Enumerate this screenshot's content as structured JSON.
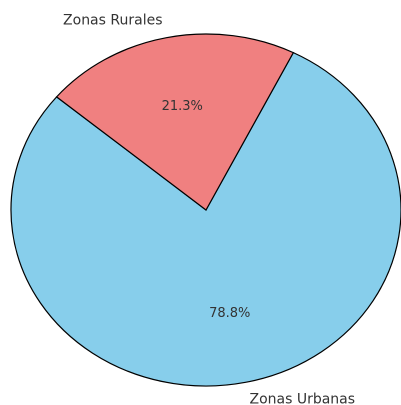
{
  "chart_data": {
    "type": "pie",
    "categories": [
      "Zonas Urbanas",
      "Zonas Rurales"
    ],
    "values": [
      78.8,
      21.3
    ],
    "value_labels": [
      "78.8%",
      "21.3%"
    ],
    "colors": [
      "#87ceeb",
      "#f08080"
    ]
  }
}
